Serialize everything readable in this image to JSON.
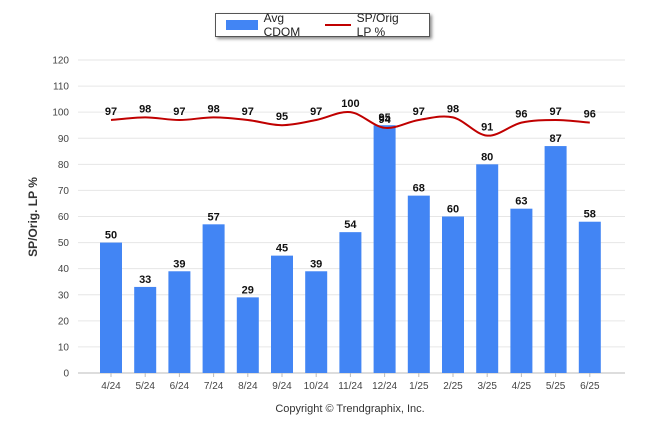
{
  "legend": {
    "bar_label": "Avg CDOM",
    "line_label": "SP/Orig LP %"
  },
  "copyright": "Copyright © Trendgraphix, Inc.",
  "chart_data": {
    "type": "bar",
    "title": "",
    "xlabel": "",
    "ylabel": "SP/Orig. LP %",
    "ylim": [
      0,
      120
    ],
    "yticks": [
      0,
      10,
      20,
      30,
      40,
      50,
      60,
      70,
      80,
      90,
      100,
      110,
      120
    ],
    "grid": true,
    "legend_position": "top",
    "categories": [
      "4/24",
      "5/24",
      "6/24",
      "7/24",
      "8/24",
      "9/24",
      "10/24",
      "11/24",
      "12/24",
      "1/25",
      "2/25",
      "3/25",
      "4/25",
      "5/25",
      "6/25"
    ],
    "series": [
      {
        "name": "Avg CDOM",
        "type": "bar",
        "color": "#4285f4",
        "values": [
          50,
          33,
          39,
          57,
          29,
          45,
          39,
          54,
          95,
          68,
          60,
          80,
          63,
          87,
          58
        ]
      },
      {
        "name": "SP/Orig LP %",
        "type": "line",
        "color": "#c00000",
        "values": [
          97,
          98,
          97,
          98,
          97,
          95,
          97,
          100,
          94,
          97,
          98,
          91,
          96,
          97,
          96
        ]
      }
    ]
  }
}
